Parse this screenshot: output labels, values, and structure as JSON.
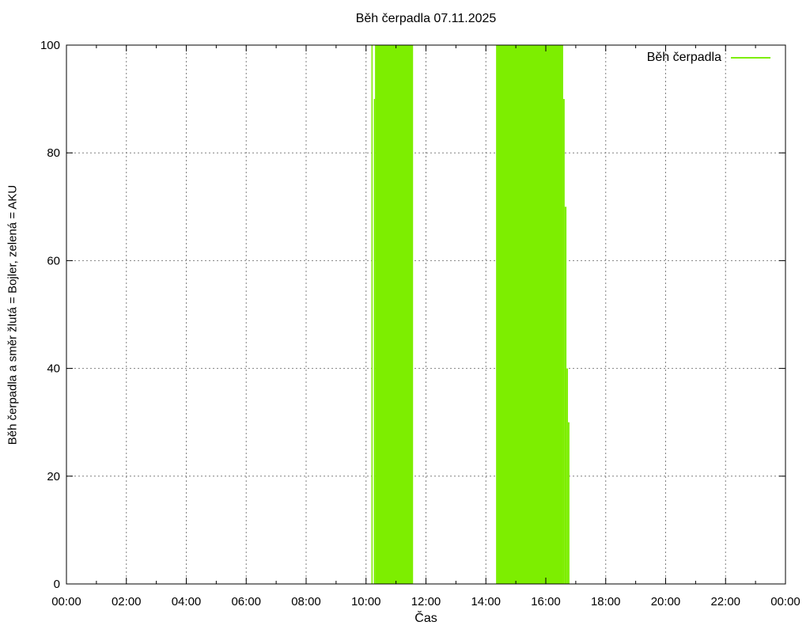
{
  "chart_data": {
    "type": "bar",
    "title": "Běh čerpadla 07.11.2025",
    "xlabel": "Čas",
    "ylabel": "Běh čerpadla a směr žlutá = Bojler, zelená = AKU",
    "grid": true,
    "legend_position": "top-right",
    "x_range_hours": [
      0,
      24
    ],
    "ylim": [
      0,
      100
    ],
    "y_ticks": [
      0,
      20,
      40,
      60,
      80,
      100
    ],
    "x_major_ticks": [
      {
        "h": 0,
        "label": "00:00"
      },
      {
        "h": 2,
        "label": "02:00"
      },
      {
        "h": 4,
        "label": "04:00"
      },
      {
        "h": 6,
        "label": "06:00"
      },
      {
        "h": 8,
        "label": "08:00"
      },
      {
        "h": 10,
        "label": "10:00"
      },
      {
        "h": 12,
        "label": "12:00"
      },
      {
        "h": 14,
        "label": "14:00"
      },
      {
        "h": 16,
        "label": "16:00"
      },
      {
        "h": 18,
        "label": "18:00"
      },
      {
        "h": 20,
        "label": "20:00"
      },
      {
        "h": 22,
        "label": "22:00"
      },
      {
        "h": 24,
        "label": "00:00"
      }
    ],
    "x_minor_hours": [
      1,
      3,
      5,
      7,
      9,
      11,
      13,
      15,
      17,
      19,
      21,
      23
    ],
    "colors": {
      "pump_run_green": "#7dee00",
      "grid_gray": "#808080",
      "axis_black": "#000000"
    },
    "series": [
      {
        "name": "Běh čerpadla",
        "color": "#7dee00",
        "style": "filled-impulses",
        "segments": [
          {
            "start_h": 10.18,
            "end_h": 10.22,
            "value": 100,
            "start_label": "10:11",
            "end_label": "10:13"
          },
          {
            "start_h": 10.26,
            "end_h": 10.3,
            "value": 90,
            "start_label": "10:16",
            "end_label": "10:18"
          },
          {
            "start_h": 10.3,
            "end_h": 11.57,
            "value": 100,
            "start_label": "10:18",
            "end_label": "11:34"
          },
          {
            "start_h": 14.34,
            "end_h": 16.58,
            "value": 100,
            "start_label": "14:20",
            "end_label": "16:35"
          },
          {
            "start_h": 16.58,
            "end_h": 16.63,
            "value": 90,
            "start_label": "16:35",
            "end_label": "16:38"
          },
          {
            "start_h": 16.63,
            "end_h": 16.69,
            "value": 70,
            "start_label": "16:38",
            "end_label": "16:41"
          },
          {
            "start_h": 16.69,
            "end_h": 16.74,
            "value": 40,
            "start_label": "16:41",
            "end_label": "16:44"
          },
          {
            "start_h": 16.74,
            "end_h": 16.79,
            "value": 30,
            "start_label": "16:44",
            "end_label": "16:47"
          }
        ]
      }
    ],
    "legend": [
      {
        "label": "Běh čerpadla",
        "color": "#7dee00"
      }
    ]
  }
}
